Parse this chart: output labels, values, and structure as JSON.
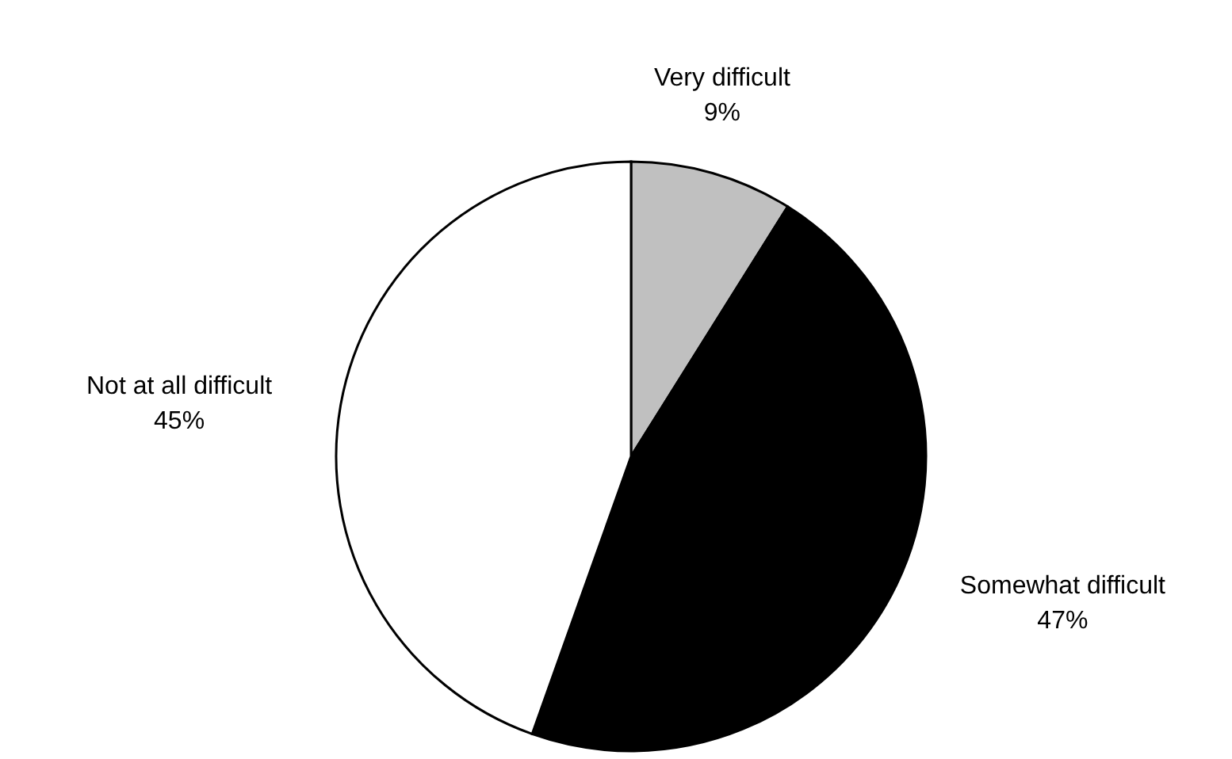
{
  "chart_data": {
    "type": "pie",
    "categories": [
      "Very difficult",
      "Somewhat difficult",
      "Not at all difficult"
    ],
    "values": [
      9,
      47,
      45
    ],
    "colors": [
      "#c0c0c0",
      "#000000",
      "#ffffff"
    ],
    "value_labels": [
      "9%",
      "47%",
      "45%"
    ],
    "legend": false
  }
}
